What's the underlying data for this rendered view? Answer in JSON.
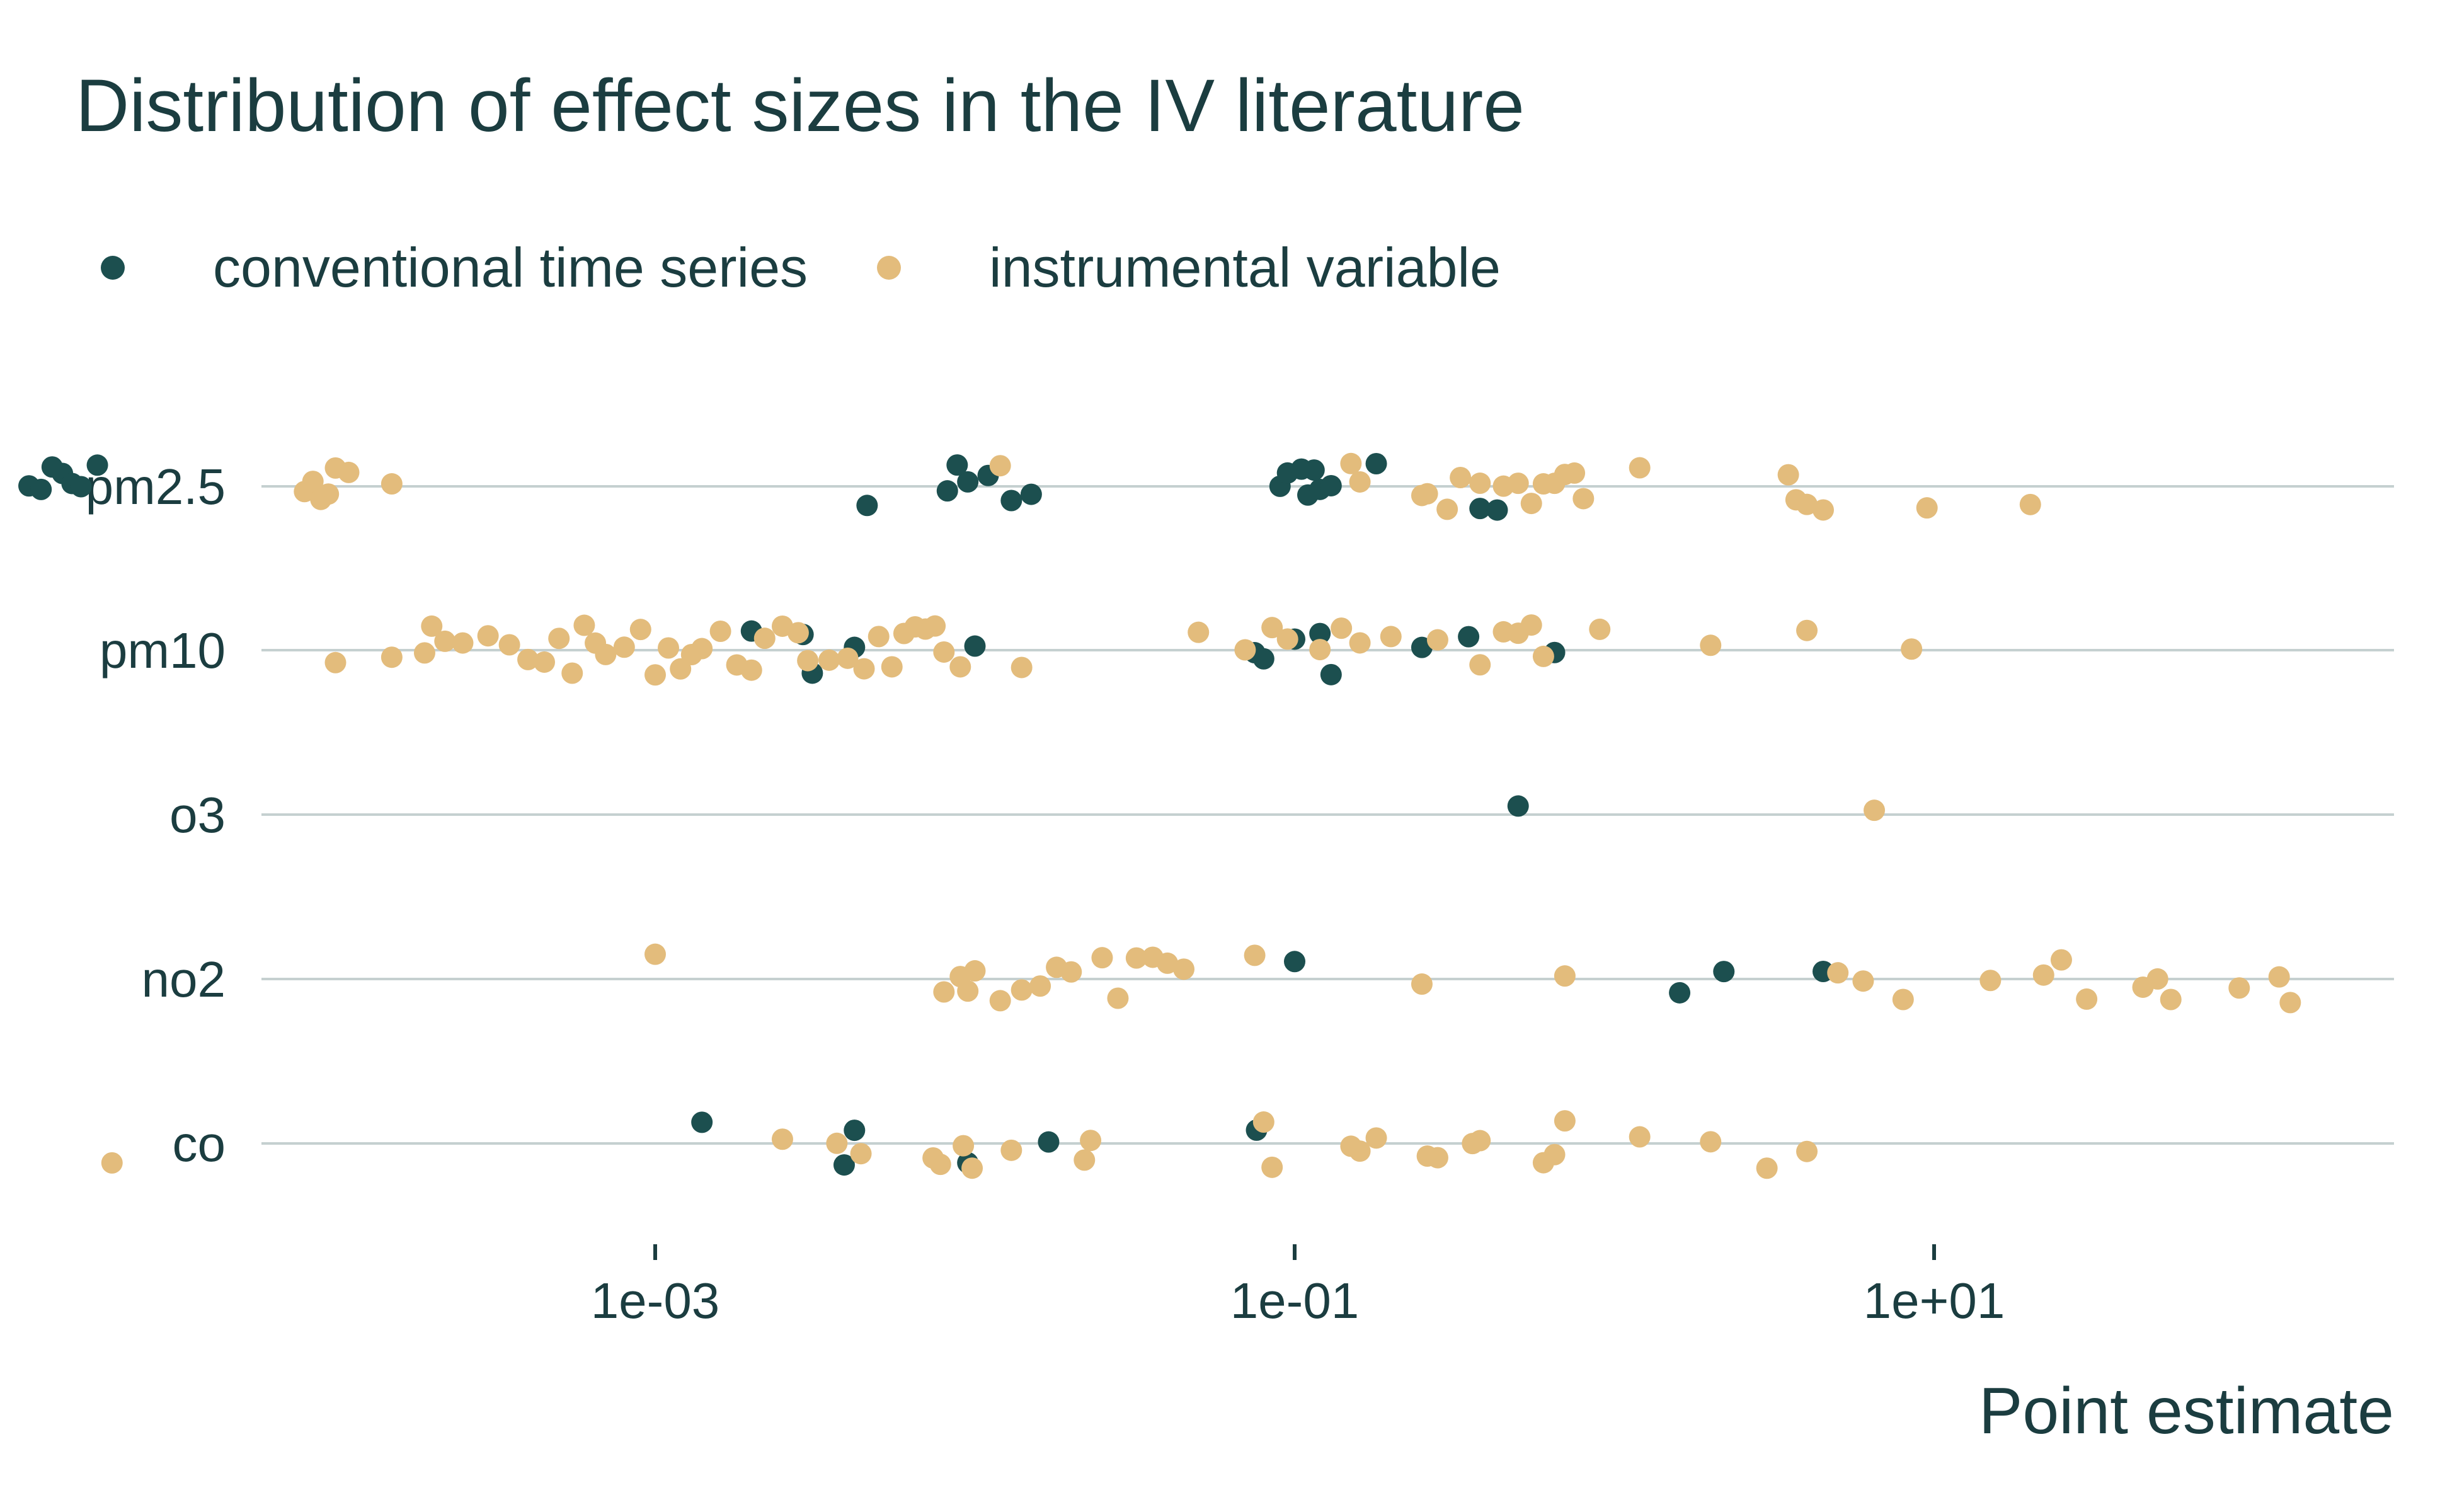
{
  "chart_data": {
    "type": "scatter",
    "title": "Distribution of effect sizes in the IV literature",
    "xlabel": "Point estimate",
    "ylabel": "",
    "x_scale": "log10",
    "xlim": [
      1e-05,
      2000
    ],
    "x_ticks": [
      "1e-03",
      "1e-01",
      "1e+01"
    ],
    "categories": [
      "pm2.5",
      "pm10",
      "o3",
      "no2",
      "co"
    ],
    "grid": "horizontal",
    "legend_position": "top-left",
    "colors": {
      "conventional time series": "#1c4f4f",
      "instrumental variable": "#e3bc7c",
      "grid": "#c5d0d0",
      "text": "#1b3d40"
    },
    "series": [
      {
        "name": "conventional time series",
        "points": {
          "pm2.5": [
            1.1e-05,
            1.2e-05,
            1.3e-05,
            1.4e-05,
            1.5e-05,
            1.6e-05,
            1.8e-05,
            0.0046,
            0.0082,
            0.0095,
            0.011,
            0.013,
            0.015,
            0.0088,
            0.09,
            0.095,
            0.11,
            0.105,
            0.12,
            0.13,
            0.115,
            0.18,
            0.38,
            0.43
          ],
          "pm10": [
            0.002,
            0.0042,
            0.0031,
            0.0029,
            0.01,
            0.075,
            0.08,
            0.1,
            0.12,
            0.13,
            0.25,
            0.35,
            0.65
          ],
          "o3": [
            0.5
          ],
          "no2": [
            0.1,
            1.6,
            2.2,
            4.5
          ],
          "co": [
            0.0014,
            0.0039,
            0.0042,
            0.0095,
            0.017,
            0.076
          ]
        }
      },
      {
        "name": "instrumental variable",
        "points": {
          "pm2.5": [
            8e-05,
            8.5e-05,
            9e-05,
            9.5e-05,
            0.0001,
            0.00011,
            0.00015,
            0.012,
            0.15,
            0.16,
            0.25,
            0.26,
            0.3,
            0.33,
            0.38,
            0.45,
            0.5,
            0.55,
            0.6,
            0.65,
            0.7,
            0.75,
            0.8,
            1.2,
            3.5,
            3.7,
            4.0,
            4.5,
            9.5,
            20.0
          ],
          "pm10": [
            0.0001,
            0.00015,
            0.00019,
            0.0002,
            0.00022,
            0.00025,
            0.0003,
            0.00035,
            0.0004,
            0.00045,
            0.0005,
            0.00055,
            0.0006,
            0.00065,
            0.0007,
            0.0008,
            0.0009,
            0.001,
            0.0011,
            0.0012,
            0.0013,
            0.0014,
            0.0016,
            0.0018,
            0.002,
            0.0022,
            0.0025,
            0.0028,
            0.003,
            0.0035,
            0.004,
            0.0045,
            0.005,
            0.0055,
            0.006,
            0.0065,
            0.007,
            0.0075,
            0.008,
            0.009,
            0.014,
            0.05,
            0.07,
            0.085,
            0.095,
            0.12,
            0.14,
            0.16,
            0.2,
            0.28,
            0.38,
            0.45,
            0.5,
            0.55,
            0.6,
            0.9,
            2.0,
            4.0,
            8.5
          ],
          "o3": [
            6.5
          ],
          "no2": [
            0.001,
            0.008,
            0.009,
            0.0095,
            0.01,
            0.012,
            0.014,
            0.016,
            0.018,
            0.02,
            0.025,
            0.028,
            0.032,
            0.036,
            0.04,
            0.045,
            0.075,
            0.25,
            0.7,
            5.0,
            6.0,
            8.0,
            15.0,
            22.0,
            25.0,
            30.0,
            45.0,
            50.0,
            55.0,
            90.0,
            120.0,
            130.0
          ],
          "co": [
            2e-05,
            0.0025,
            0.0037,
            0.0044,
            0.0074,
            0.0078,
            0.0092,
            0.0098,
            0.013,
            0.022,
            0.023,
            0.08,
            0.085,
            0.15,
            0.16,
            0.18,
            0.26,
            0.28,
            0.36,
            0.38,
            0.6,
            0.65,
            0.7,
            1.2,
            2.0,
            3.0,
            4.0
          ]
        }
      }
    ]
  }
}
